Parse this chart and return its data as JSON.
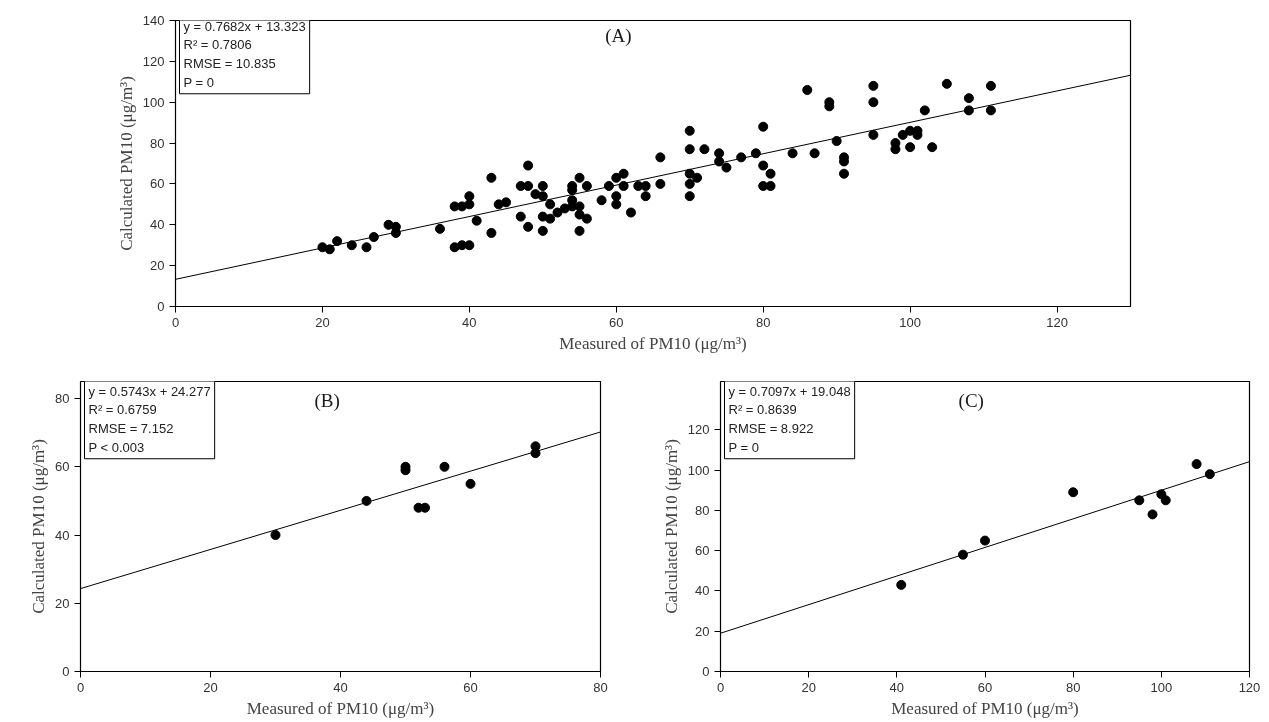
{
  "chart_data": [
    {
      "type": "scatter",
      "title": "(A)",
      "xlabel": "Measured of PM10 (μg/m³)",
      "ylabel": "Calculated PM10 (μg/m³)",
      "annotations": [
        "y = 0.7682x + 13.323",
        "R² = 0.7806",
        "RMSE = 10.835",
        "P = 0"
      ],
      "xlim": [
        0,
        130
      ],
      "xticks": [
        0,
        20,
        40,
        60,
        80,
        100,
        120
      ],
      "ylim": [
        0,
        140
      ],
      "yticks": [
        0,
        20,
        40,
        60,
        80,
        100,
        120,
        140
      ],
      "grid": false,
      "series": [
        {
          "marker": "circle",
          "color": "#000000",
          "x": [
            20,
            21,
            22,
            24,
            26,
            27,
            29,
            30,
            30,
            36,
            38,
            38,
            39,
            39,
            40,
            40,
            40,
            41,
            43,
            43,
            44,
            45,
            47,
            48,
            48,
            47,
            48,
            49,
            50,
            50,
            50,
            50,
            51,
            51,
            52,
            53,
            54,
            54,
            54,
            54,
            55,
            55,
            55,
            55,
            56,
            56,
            58,
            59,
            60,
            61,
            60,
            60,
            61,
            62,
            63,
            64,
            64,
            66,
            66,
            70,
            70,
            70,
            70,
            70,
            71,
            72,
            74,
            74,
            75,
            77,
            79,
            80,
            80,
            80,
            81,
            81,
            84,
            86,
            87,
            89,
            89,
            90,
            91,
            91,
            91,
            95,
            95,
            95,
            98,
            98,
            99,
            100,
            100,
            101,
            101,
            102,
            103,
            105,
            108,
            108,
            111,
            111
          ],
          "values": [
            29,
            28,
            32,
            30,
            29,
            34,
            40,
            39,
            36,
            38,
            49,
            29,
            49,
            30,
            54,
            50,
            30,
            42,
            63,
            36,
            50,
            51,
            59,
            59,
            69,
            44,
            39,
            55,
            59,
            54,
            44,
            37,
            50,
            43,
            46,
            48,
            49,
            59,
            57,
            52,
            63,
            49,
            45,
            37,
            59,
            43,
            52,
            59,
            63,
            65,
            54,
            50,
            59,
            46,
            59,
            59,
            54,
            73,
            60,
            86,
            77,
            65,
            60,
            54,
            63,
            77,
            75,
            71,
            68,
            73,
            75,
            88,
            69,
            59,
            59,
            65,
            75,
            106,
            75,
            100,
            98,
            81,
            73,
            71,
            65,
            108,
            100,
            84,
            80,
            77,
            84,
            86,
            78,
            86,
            84,
            96,
            78,
            109,
            102,
            96,
            108,
            96
          ]
        },
        {
          "type": "line",
          "color": "#000000",
          "x": [
            0,
            130
          ],
          "values": [
            13.3,
            113.2
          ]
        }
      ]
    },
    {
      "type": "scatter",
      "title": "(B)",
      "xlabel": "Measured of PM10 (μg/m³)",
      "ylabel": "Calculated PM10 (μg/m³)",
      "annotations": [
        "y = 0.5743x + 24.277",
        "R² = 0.6759",
        "RMSE = 7.152",
        "P < 0.003"
      ],
      "xlim": [
        0,
        80
      ],
      "xticks": [
        0,
        20,
        40,
        60,
        80
      ],
      "ylim": [
        0,
        85
      ],
      "yticks": [
        0,
        20,
        40,
        60,
        80
      ],
      "grid": false,
      "series": [
        {
          "marker": "circle",
          "color": "#000000",
          "x": [
            30,
            44,
            50,
            50,
            52,
            53,
            56,
            60,
            70,
            70
          ],
          "values": [
            40,
            50,
            60,
            59,
            48,
            48,
            60,
            55,
            66,
            64
          ]
        },
        {
          "type": "line",
          "color": "#000000",
          "x": [
            0,
            80
          ],
          "values": [
            24.3,
            70.2
          ]
        }
      ]
    },
    {
      "type": "scatter",
      "title": "(C)",
      "xlabel": "Measured of PM10 (μg/m³)",
      "ylabel": "Calculated PM10 (μg/m³)",
      "annotations": [
        "y = 0.7097x + 19.048",
        "R² = 0.8639",
        "RMSE = 8.922",
        "P = 0"
      ],
      "xlim": [
        0,
        120
      ],
      "xticks": [
        0,
        20,
        40,
        60,
        80,
        100,
        120
      ],
      "ylim": [
        0,
        144
      ],
      "yticks": [
        0,
        20,
        40,
        60,
        80,
        100,
        120
      ],
      "grid": false,
      "series": [
        {
          "marker": "circle",
          "color": "#000000",
          "x": [
            41,
            55,
            60,
            80,
            95,
            98,
            100,
            101,
            108,
            111
          ],
          "values": [
            43,
            58,
            65,
            89,
            85,
            78,
            88,
            85,
            103,
            98
          ]
        },
        {
          "type": "line",
          "color": "#000000",
          "x": [
            0,
            120
          ],
          "values": [
            19.0,
            104.2
          ]
        }
      ]
    }
  ]
}
